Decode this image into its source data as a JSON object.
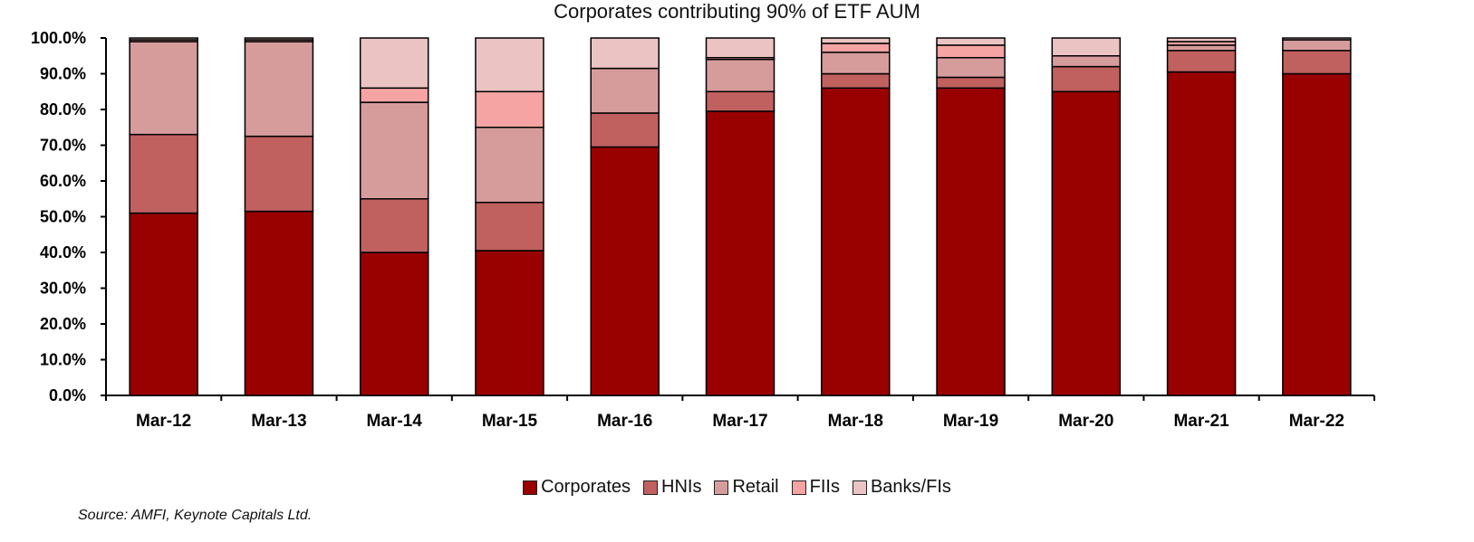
{
  "chart_data": {
    "type": "bar",
    "stacked": true,
    "title": "Corporates contributing 90% of ETF AUM",
    "xlabel": "",
    "ylabel": "",
    "ylim": [
      0,
      100
    ],
    "y_ticks": [
      "0.0%",
      "10.0%",
      "20.0%",
      "30.0%",
      "40.0%",
      "50.0%",
      "60.0%",
      "70.0%",
      "80.0%",
      "90.0%",
      "100.0%"
    ],
    "categories": [
      "Mar-12",
      "Mar-13",
      "Mar-14",
      "Mar-15",
      "Mar-16",
      "Mar-17",
      "Mar-18",
      "Mar-19",
      "Mar-20",
      "Mar-21",
      "Mar-22"
    ],
    "series": [
      {
        "name": "Corporates",
        "color": "#990000",
        "values": [
          51.0,
          51.5,
          40.0,
          40.5,
          69.5,
          79.5,
          86.0,
          86.0,
          85.0,
          90.5,
          90.0
        ]
      },
      {
        "name": "HNIs",
        "color": "#c0605f",
        "values": [
          22.0,
          21.0,
          15.0,
          13.5,
          9.5,
          5.5,
          4.0,
          3.0,
          7.0,
          6.0,
          6.5
        ]
      },
      {
        "name": "Retail",
        "color": "#d69c9b",
        "values": [
          26.0,
          26.5,
          27.0,
          21.0,
          12.5,
          9.0,
          6.0,
          5.5,
          3.0,
          1.5,
          3.0
        ]
      },
      {
        "name": "FIIs",
        "color": "#f5a3a3",
        "values": [
          0.5,
          0.5,
          4.0,
          10.0,
          0.0,
          0.5,
          2.5,
          3.5,
          0.0,
          1.0,
          0.0
        ]
      },
      {
        "name": "Banks/FIs",
        "color": "#ecc3c3",
        "values": [
          0.5,
          0.5,
          14.0,
          15.0,
          8.5,
          5.5,
          1.5,
          2.0,
          5.0,
          1.0,
          0.5
        ]
      }
    ],
    "grid": false,
    "legend_position": "bottom"
  },
  "source": "Source: AMFI, Keynote Capitals Ltd."
}
